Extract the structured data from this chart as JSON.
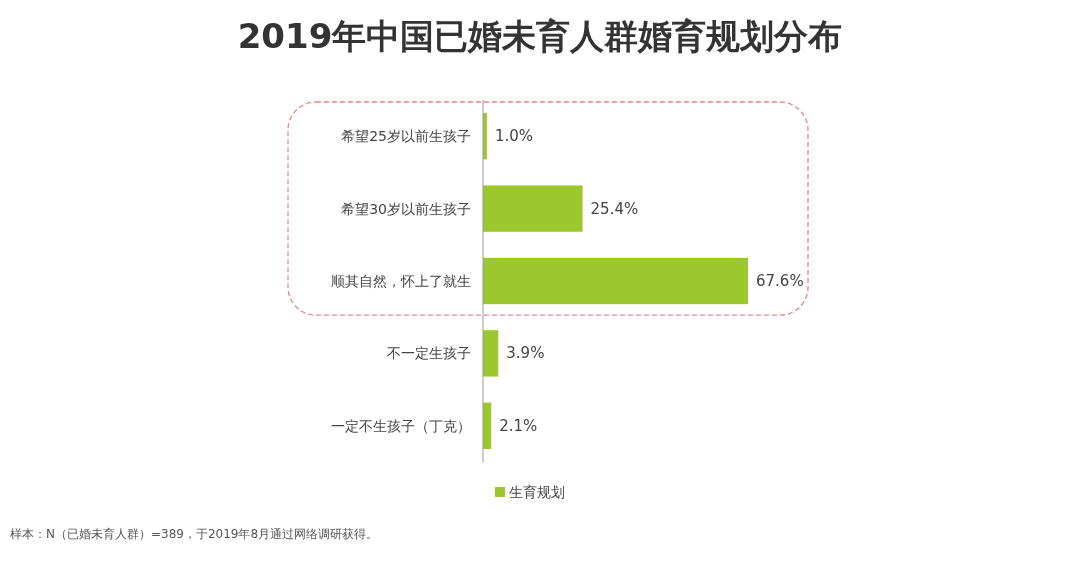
{
  "chart_data": {
    "type": "bar",
    "orientation": "horizontal",
    "title": "2019年中国已婚未育人群婚育规划分布",
    "categories": [
      "希望25岁以前生孩子",
      "希望30岁以前生孩子",
      "顺其自然，怀上了就生",
      "不一定生孩子",
      "一定不生孩子（丁克）"
    ],
    "series": [
      {
        "name": "生育规划",
        "color": "#9cc82e",
        "values": [
          1.0,
          25.4,
          67.6,
          3.9,
          2.1
        ],
        "value_labels": [
          "1.0%",
          "25.4%",
          "67.6%",
          "3.9%",
          "2.1%"
        ]
      }
    ],
    "legend": "bottom",
    "annotations": [
      "样本：N（已婚未育人群）=389，于2019年8月通过网络调研获得。"
    ]
  }
}
